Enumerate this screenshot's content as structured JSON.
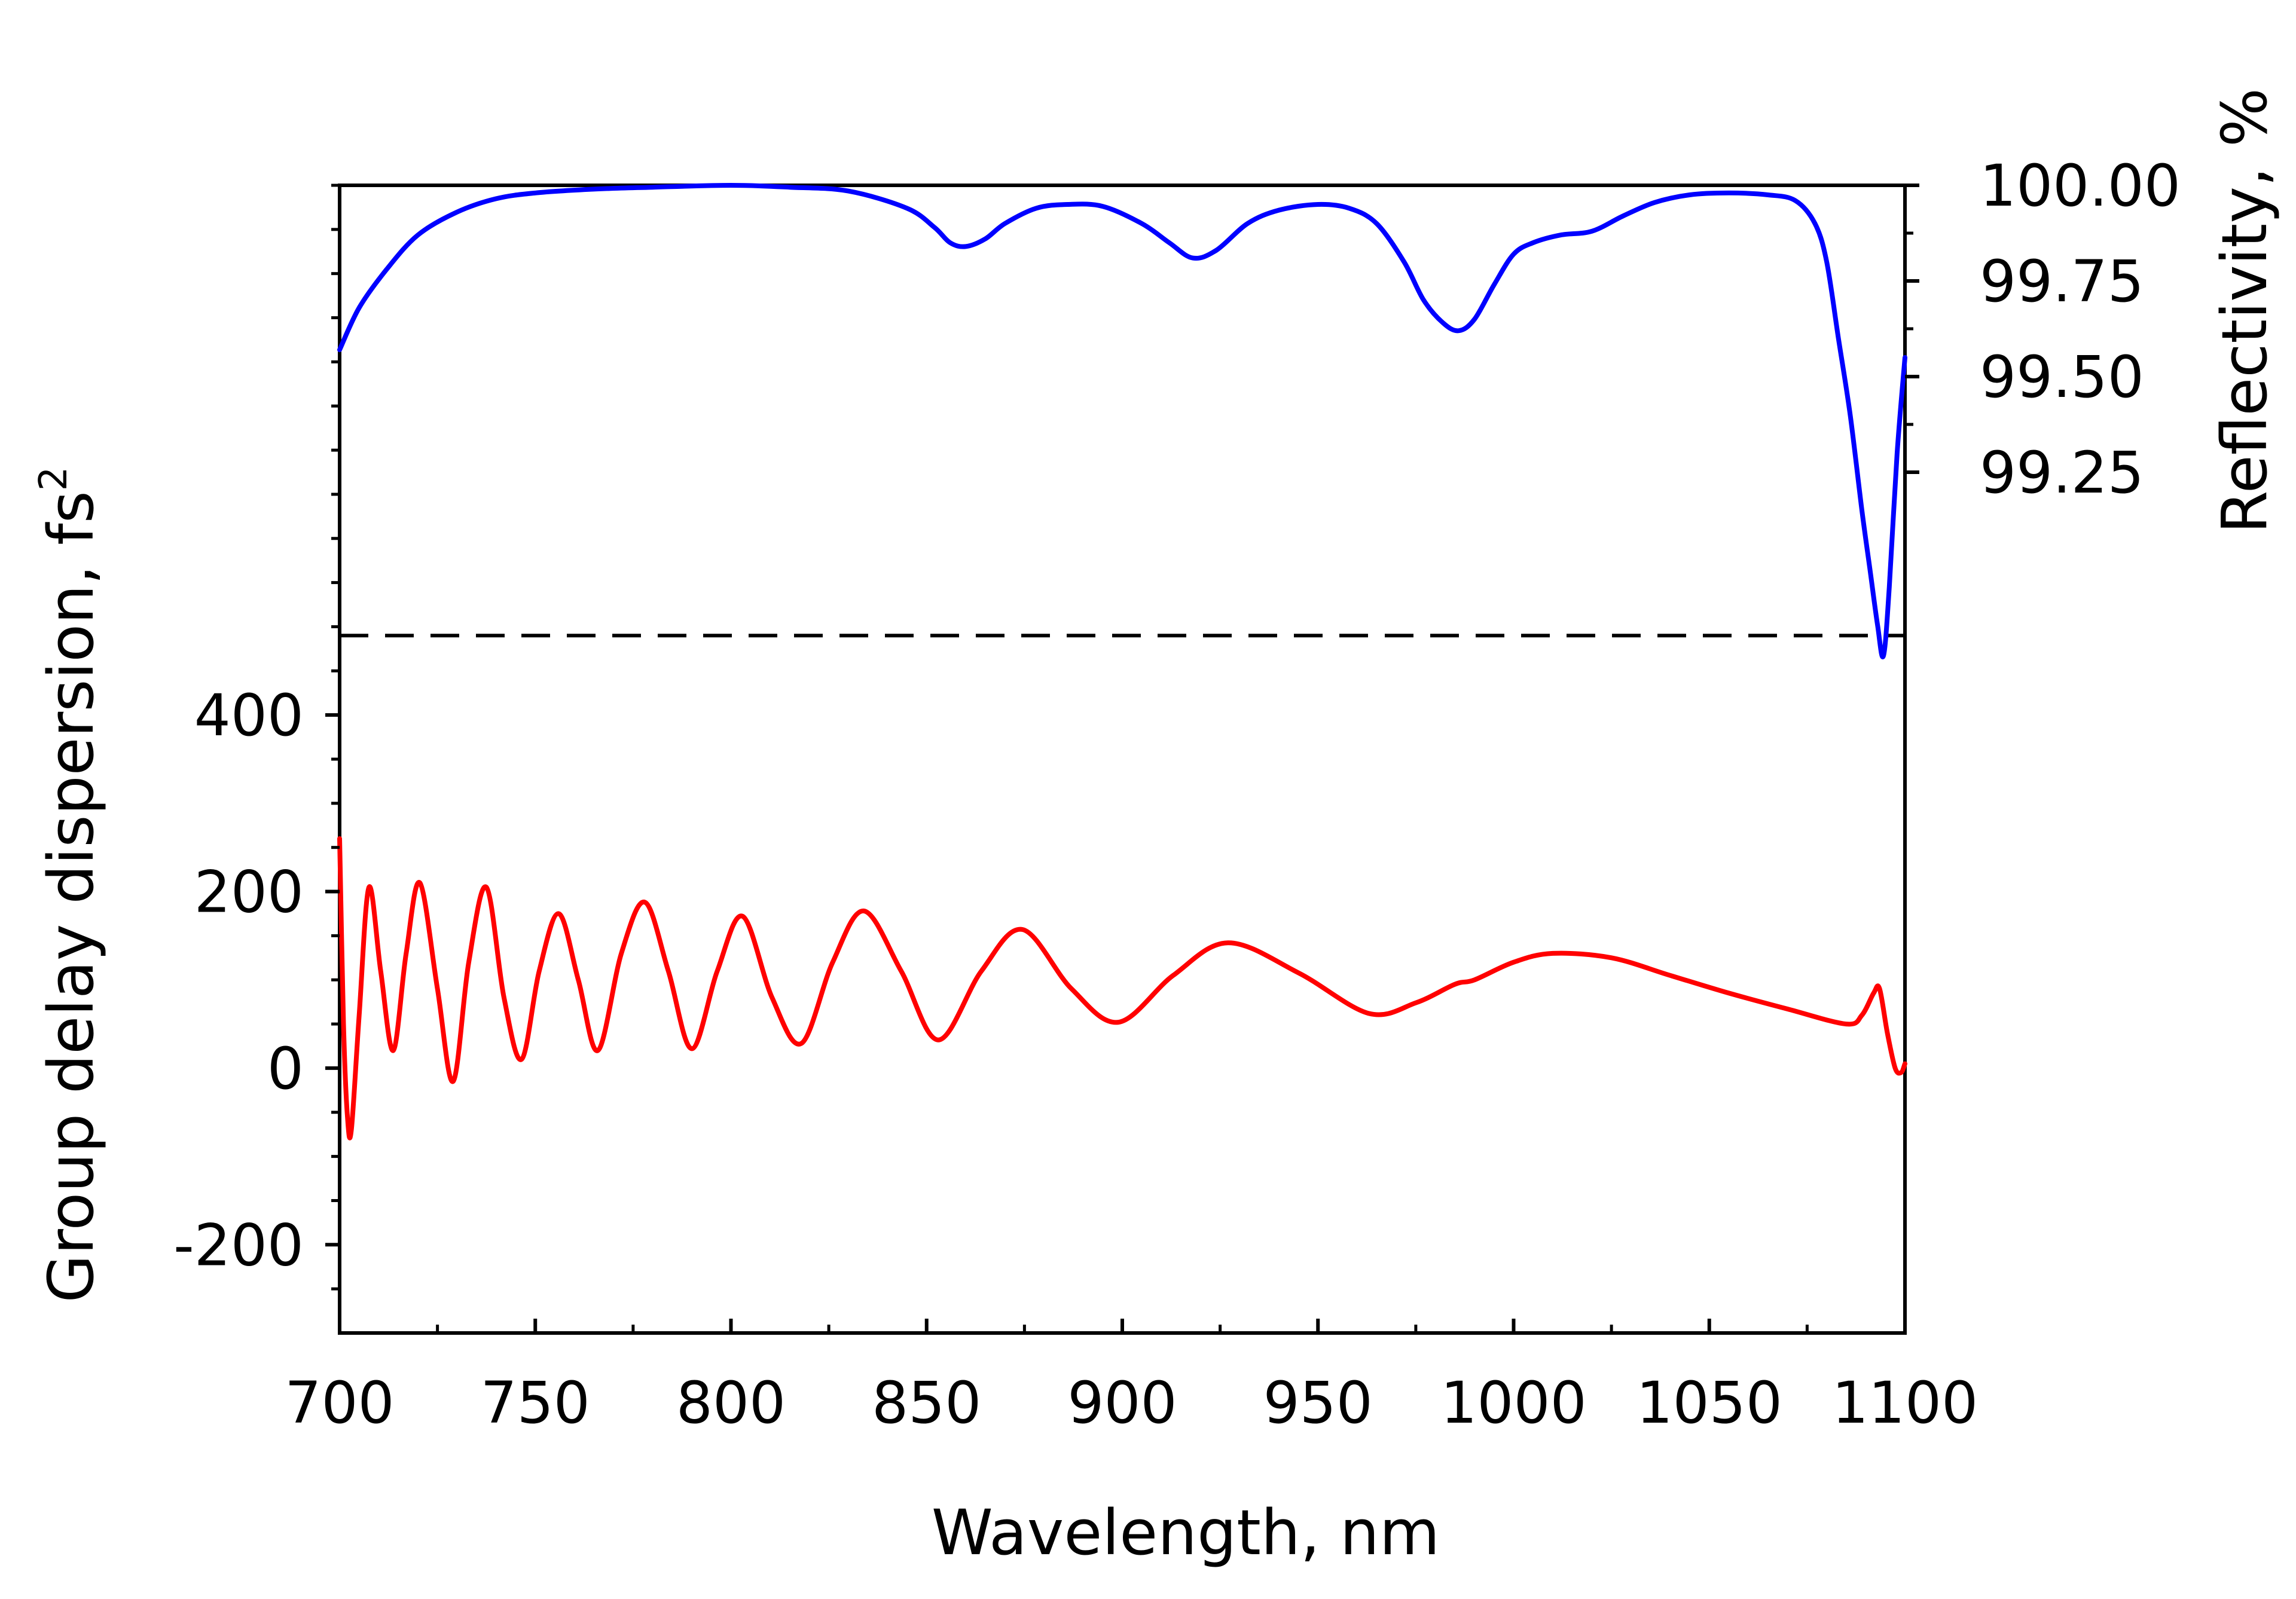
{
  "chart_data": {
    "type": "line",
    "xlabel": "Wavelength, nm",
    "ylabel_left": "Group delay dispersion, fs",
    "ylabel_left_superscript": "2",
    "ylabel_right": "Reflectivity, %",
    "xlim": [
      700,
      1100
    ],
    "x_ticks": [
      700,
      750,
      800,
      850,
      900,
      950,
      1000,
      1050,
      1100
    ],
    "x_tick_labels": [
      "700",
      "750",
      "800",
      "850",
      "900",
      "950",
      "1000",
      "1050",
      "1100"
    ],
    "left_axis": {
      "ylim": [
        -300,
        1000
      ],
      "ticks": [
        -200,
        0,
        200,
        400
      ],
      "tick_labels": [
        "-200",
        "0",
        "200",
        "400"
      ]
    },
    "right_axis": {
      "ylim": [
        97.0,
        100.0
      ],
      "ticks": [
        99.25,
        99.5,
        99.75,
        100.0
      ],
      "tick_labels": [
        "99.25",
        "99.50",
        "99.75",
        "100.00"
      ]
    },
    "reference_line": {
      "axis": "left",
      "y": 490,
      "style": "dashed",
      "color": "#000000"
    },
    "series": [
      {
        "axis": "right",
        "color": "#0000ff",
        "x": [
          700,
          705,
          712,
          720,
          730,
          740,
          750,
          765,
          780,
          800,
          815,
          830,
          845,
          852,
          856,
          860,
          865,
          870,
          878,
          886,
          895,
          905,
          912,
          918,
          924,
          932,
          940,
          950,
          958,
          965,
          972,
          977,
          982,
          986,
          990,
          995,
          1000,
          1005,
          1012,
          1020,
          1028,
          1036,
          1045,
          1055,
          1065,
          1072,
          1077,
          1080,
          1083,
          1086,
          1089,
          1091,
          1093,
          1094.5,
          1096,
          1098,
          1100
        ],
        "y": [
          99.57,
          99.68,
          99.78,
          99.87,
          99.93,
          99.965,
          99.98,
          99.99,
          99.995,
          100.0,
          99.995,
          99.985,
          99.94,
          99.89,
          99.85,
          99.84,
          99.86,
          99.9,
          99.94,
          99.95,
          99.945,
          99.9,
          99.85,
          99.81,
          99.83,
          99.9,
          99.935,
          99.95,
          99.94,
          99.9,
          99.8,
          99.7,
          99.64,
          99.62,
          99.65,
          99.74,
          99.82,
          99.85,
          99.87,
          99.88,
          99.92,
          99.955,
          99.975,
          99.98,
          99.975,
          99.96,
          99.9,
          99.8,
          99.6,
          99.4,
          99.15,
          99.0,
          98.85,
          98.77,
          98.95,
          99.3,
          99.55
        ]
      },
      {
        "axis": "left",
        "color": "#ff0000",
        "x": [
          700,
          701,
          702,
          703,
          705,
          707.5,
          710.5,
          713.7,
          717,
          720.5,
          725,
          729,
          733,
          737.5,
          742,
          746.5,
          751,
          756,
          761,
          766,
          772,
          778,
          784,
          790,
          796.5,
          803,
          810.5,
          818,
          826,
          834,
          843.5,
          853,
          864,
          874.5,
          887,
          899,
          913,
          927,
          945,
          963,
          975,
          985,
          990,
          1000,
          1010,
          1025,
          1040,
          1055,
          1070,
          1085,
          1089,
          1092,
          1093.5,
          1095.5,
          1097.5,
          1099,
          1100
        ],
        "y": [
          260,
          50,
          -55,
          -70,
          60,
          205,
          110,
          20,
          130,
          210,
          90,
          -15,
          120,
          205,
          80,
          10,
          110,
          175,
          100,
          20,
          130,
          188,
          110,
          22,
          110,
          172,
          80,
          28,
          120,
          178,
          110,
          32,
          110,
          157,
          90,
          52,
          105,
          142,
          108,
          62,
          74,
          95,
          100,
          120,
          130,
          125,
          105,
          85,
          67,
          50,
          60,
          85,
          90,
          40,
          0,
          -5,
          5
        ]
      }
    ]
  }
}
